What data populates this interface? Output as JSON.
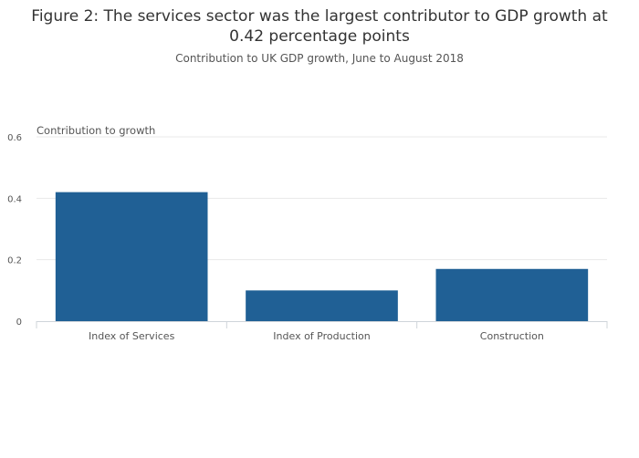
{
  "chart_data": {
    "type": "bar",
    "title": "Figure 2: The services sector was the largest contributor to GDP growth at 0.42 percentage points",
    "subtitle": "Contribution to UK GDP growth, June to August 2018",
    "ylabel": "Contribution to growth",
    "xlabel": "",
    "categories": [
      "Index of Services",
      "Index of Production",
      "Construction"
    ],
    "values": [
      0.42,
      0.1,
      0.17
    ],
    "ylim": [
      0,
      0.6
    ],
    "yticks": [
      "0",
      "0.2",
      "0.4",
      "0.6"
    ],
    "grid": true,
    "legend": "none",
    "bar_color": "#206095",
    "grid_color": "#e8e8e8"
  }
}
